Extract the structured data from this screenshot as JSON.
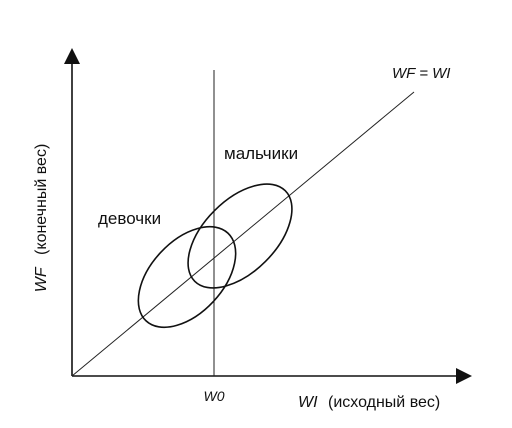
{
  "diagram": {
    "y_axis_label": {
      "symbol": "WF",
      "text": "(конечный вес)"
    },
    "x_axis_label": {
      "symbol": "WI",
      "text": "(исходный вес)"
    },
    "x_tick_label": "W0",
    "identity_line_label": "WF = WI",
    "groups": [
      {
        "name": "девочки"
      },
      {
        "name": "мальчики"
      }
    ],
    "colors": {
      "stroke": "#111111",
      "background": "#ffffff"
    }
  }
}
